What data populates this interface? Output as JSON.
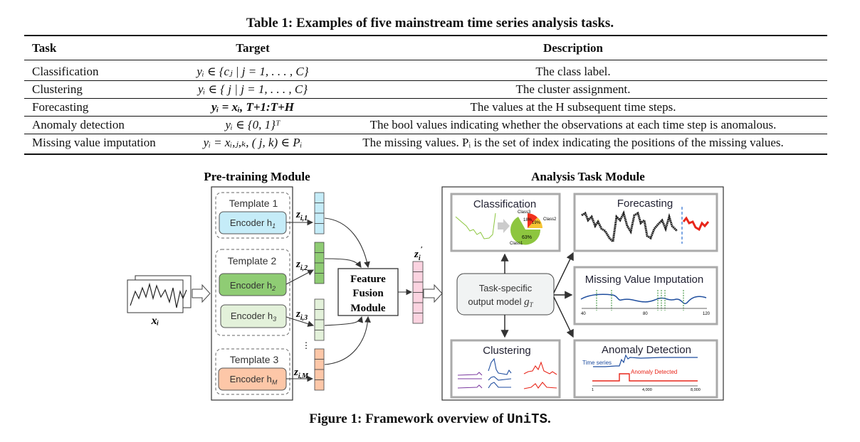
{
  "table": {
    "title": "Table 1: Examples of five mainstream time series analysis tasks.",
    "headers": [
      "Task",
      "Target",
      "Description"
    ],
    "rows": [
      {
        "task": "Classification",
        "target": "yᵢ ∈ {cⱼ | j = 1, . . . , C}",
        "description": "The class label."
      },
      {
        "task": "Clustering",
        "target": "yᵢ ∈ { j | j = 1, . . . , C}",
        "description": "The cluster assignment."
      },
      {
        "task": "Forecasting",
        "target": "yᵢ = xᵢ, T+1:T+H",
        "description": "The values at the H subsequent time steps."
      },
      {
        "task": "Anomaly detection",
        "target": "yᵢ ∈ {0, 1}ᵀ",
        "description": "The bool values indicating whether the observations at each time step is anomalous."
      },
      {
        "task": "Missing value imputation",
        "target": "yᵢ = xᵢ,ⱼ,ₖ, ( j, k) ∈ Pᵢ",
        "description": "The missing values. Pᵢ is the set of index indicating the positions of the missing values."
      }
    ]
  },
  "figure": {
    "pretraining_title": "Pre-training Module",
    "analysis_title": "Analysis Task Module",
    "input_label": "xᵢ",
    "templates": [
      {
        "label": "Template 1",
        "encoders": [
          {
            "name": "Encoder h",
            "sub": "1",
            "color": "#c5ecf8"
          }
        ]
      },
      {
        "label": "Template 2",
        "encoders": [
          {
            "name": "Encoder h",
            "sub": "2",
            "color": "#8fcc74"
          },
          {
            "name": "Encoder h",
            "sub": "3",
            "color": "#e3f1da"
          }
        ]
      },
      {
        "label": "Template 3",
        "encoders": [
          {
            "name": "Encoder h",
            "sub": "M",
            "color": "#fdc7a8"
          }
        ]
      }
    ],
    "embeddings": [
      {
        "label": "z",
        "sub": "i,1"
      },
      {
        "label": "z",
        "sub": "i,2"
      },
      {
        "label": "z",
        "sub": "i,3"
      },
      {
        "label": "z",
        "sub": "i,M"
      }
    ],
    "ellipsis": "⋮",
    "fusion": [
      "Feature",
      "Fusion",
      "Module"
    ],
    "fused_label": "z",
    "fused_sub": "i",
    "fused_sup": "′",
    "output_model": [
      "Task-specific",
      "output model"
    ],
    "output_model_symbol": "g",
    "output_model_sub": "T",
    "panels": {
      "classification": {
        "title": "Classification",
        "classes": [
          "Class3",
          "Class2",
          "Class1"
        ],
        "percents": [
          "18%",
          "19%",
          "63%"
        ],
        "colors": [
          "#f2311c",
          "#f6c432",
          "#8dc63f"
        ]
      },
      "forecasting": {
        "title": "Forecasting"
      },
      "imputation": {
        "title": "Missing Value Imputation",
        "ticks": [
          "40",
          "80",
          "120"
        ]
      },
      "clustering": {
        "title": "Clustering"
      },
      "anomaly": {
        "title": "Anomaly Detection",
        "series_label": "Time series",
        "anomaly_label": "Anomaly Detected",
        "ticks": [
          "1",
          "4,000",
          "8,000"
        ]
      }
    },
    "caption_prefix": "Figure 1: Framework overview of ",
    "caption_name": "UniTS",
    "caption_suffix": "."
  }
}
